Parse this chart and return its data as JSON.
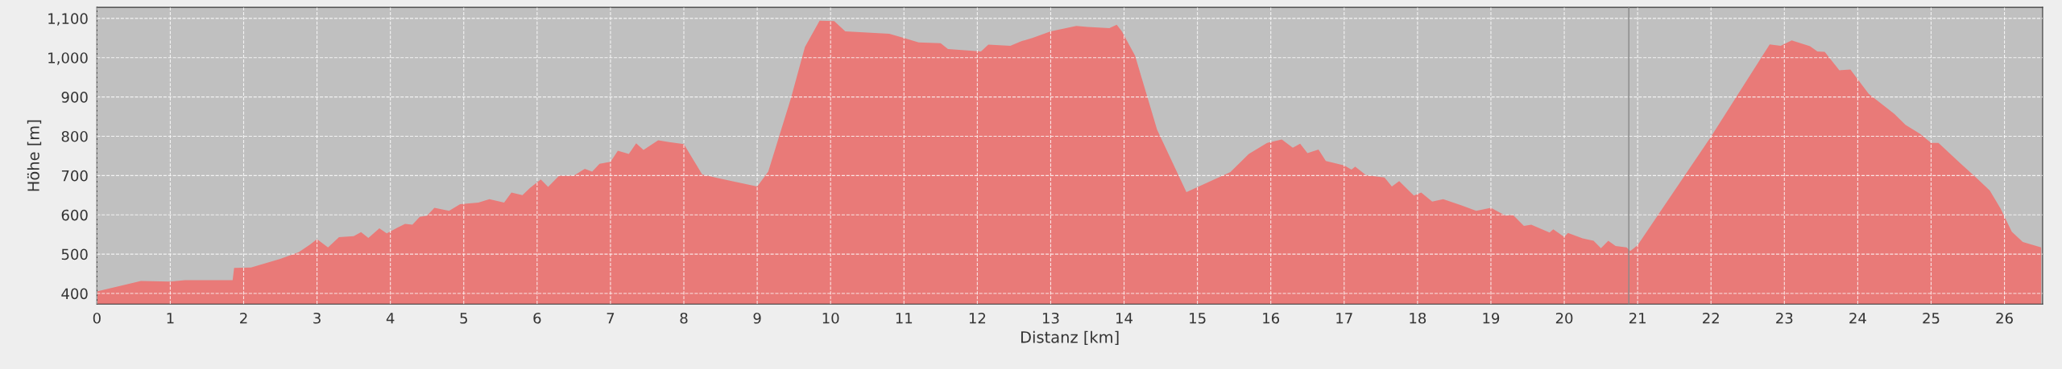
{
  "chart_data": {
    "type": "area",
    "xlabel": "Distanz [km]",
    "ylabel": "Höhe [m]",
    "x": [
      0,
      0.6,
      1.0,
      1.2,
      1.85,
      1.87,
      2.1,
      2.5,
      2.75,
      2.9,
      3.0,
      3.15,
      3.3,
      3.5,
      3.6,
      3.7,
      3.85,
      3.95,
      4.1,
      4.2,
      4.3,
      4.4,
      4.5,
      4.6,
      4.8,
      4.95,
      5.2,
      5.35,
      5.55,
      5.65,
      5.8,
      5.9,
      6.05,
      6.15,
      6.3,
      6.5,
      6.65,
      6.75,
      6.85,
      7.0,
      7.1,
      7.25,
      7.35,
      7.45,
      7.65,
      7.8,
      8.0,
      8.25,
      8.5,
      9.0,
      9.15,
      9.46,
      9.65,
      9.85,
      10.05,
      10.2,
      10.4,
      10.8,
      11.0,
      11.2,
      11.5,
      11.6,
      11.9,
      12.05,
      12.15,
      12.45,
      12.6,
      12.75,
      13.0,
      13.35,
      13.5,
      13.8,
      13.9,
      13.97,
      14.15,
      14.45,
      14.85,
      15.45,
      15.7,
      15.95,
      16.15,
      16.3,
      16.4,
      16.5,
      16.65,
      16.75,
      17.0,
      17.1,
      17.15,
      17.3,
      17.55,
      17.65,
      17.75,
      17.95,
      18.05,
      18.2,
      18.35,
      18.6,
      18.8,
      19.0,
      19.2,
      19.3,
      19.45,
      19.55,
      19.8,
      19.85,
      20.0,
      20.05,
      20.25,
      20.4,
      20.5,
      20.6,
      20.7,
      20.85,
      20.9,
      21.0,
      22.0,
      22.8,
      22.95,
      23.1,
      23.35,
      23.45,
      23.55,
      23.75,
      23.9,
      24.15,
      24.5,
      24.65,
      24.85,
      25.0,
      25.1,
      25.4,
      25.6,
      25.8,
      25.95,
      26.1,
      26.25,
      26.5
    ],
    "series": [
      {
        "color": "#e97a78",
        "values": [
          405,
          432,
          430,
          434,
          434,
          465,
          466,
          488,
          505,
          524,
          538,
          517,
          543,
          546,
          556,
          541,
          566,
          553,
          568,
          577,
          575,
          595,
          598,
          618,
          610,
          627,
          631,
          640,
          631,
          657,
          650,
          668,
          690,
          671,
          700,
          700,
          717,
          710,
          730,
          735,
          763,
          755,
          782,
          765,
          790,
          785,
          780,
          703,
          692,
          672,
          710,
          897,
          1027,
          1094,
          1093,
          1067,
          1065,
          1061,
          1050,
          1039,
          1037,
          1022,
          1018,
          1016,
          1033,
          1030,
          1042,
          1050,
          1067,
          1081,
          1078,
          1075,
          1084,
          1067,
          1005,
          817,
          658,
          709,
          755,
          783,
          792,
          771,
          781,
          757,
          766,
          737,
          726,
          715,
          723,
          701,
          695,
          672,
          686,
          649,
          657,
          634,
          640,
          624,
          610,
          618,
          598,
          600,
          572,
          575,
          555,
          563,
          544,
          554,
          540,
          534,
          515,
          534,
          521,
          517,
          508,
          523,
          799,
          1034,
          1030,
          1044,
          1029,
          1016,
          1015,
          968,
          970,
          908,
          857,
          829,
          806,
          783,
          783,
          731,
          697,
          662,
          615,
          557,
          531,
          517
        ]
      }
    ],
    "xlim": [
      0,
      26.52
    ],
    "ylim": [
      373,
      1128
    ],
    "xticks": [
      0,
      1,
      2,
      3,
      4,
      5,
      6,
      7,
      8,
      9,
      10,
      11,
      12,
      13,
      14,
      15,
      16,
      17,
      18,
      19,
      20,
      21,
      22,
      23,
      24,
      25,
      26
    ],
    "yticks": [
      400,
      500,
      600,
      700,
      800,
      900,
      {
        "value": 1000,
        "label": "1,000"
      },
      {
        "value": 1100,
        "label": "1,100"
      }
    ],
    "ref_lines": [
      {
        "axis": "x",
        "value": 20.88,
        "color": "#8a8a8a"
      }
    ],
    "grid": true
  }
}
